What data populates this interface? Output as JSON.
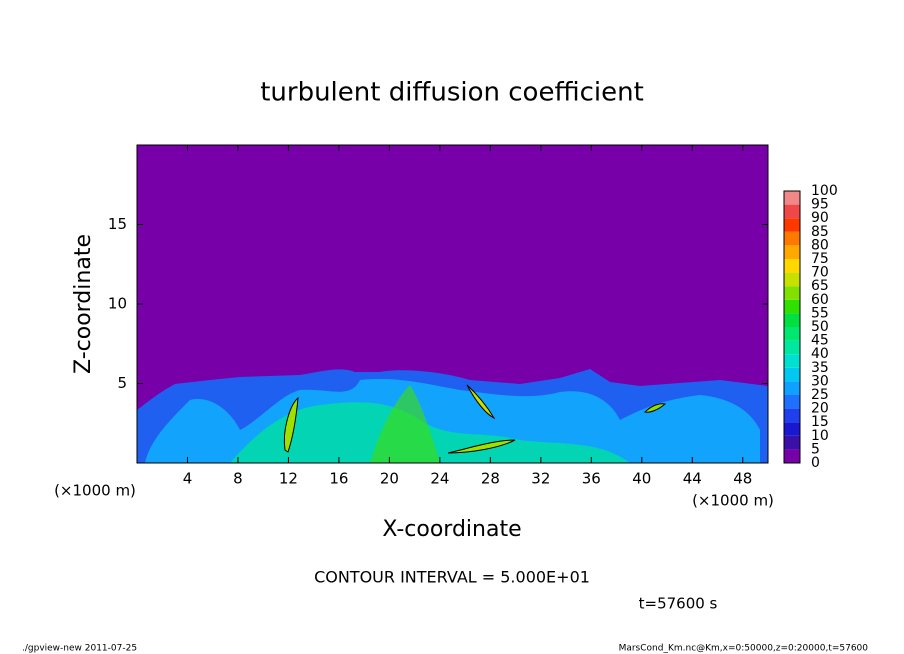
{
  "chart_data": {
    "type": "contour",
    "title": "turbulent diffusion coefficient",
    "x_label": "X-coordinate",
    "y_label": "Z-coordinate",
    "unit_label": "(×1000 m)",
    "xlim": [
      0,
      50
    ],
    "xticks": [
      4,
      8,
      12,
      16,
      20,
      24,
      28,
      32,
      36,
      40,
      44,
      48
    ],
    "ylim": [
      0,
      20
    ],
    "yticks": [
      5,
      10,
      15
    ],
    "colorbar": {
      "levels": [
        0,
        5,
        10,
        15,
        20,
        25,
        30,
        35,
        40,
        45,
        50,
        55,
        60,
        65,
        70,
        75,
        80,
        85,
        90,
        95,
        100
      ],
      "colors": [
        "#7800a8",
        "#3a10a8",
        "#1818d0",
        "#2040f0",
        "#2070ff",
        "#10a0ff",
        "#00c8f0",
        "#00e0d0",
        "#00e8a0",
        "#00e870",
        "#00e040",
        "#30e000",
        "#80e000",
        "#c8e000",
        "#ffd800",
        "#ffa800",
        "#ff7800",
        "#ff3800",
        "#f04848",
        "#f08888"
      ]
    },
    "contour_interval": "CONTOUR INTERVAL = 5.000E+01",
    "time_label": "t=57600 s",
    "footer_left": "./gpview-new  2011-07-25",
    "footer_right": "MarsCond_Km.nc@Km,x=0:50000,z=0:20000,t=57600"
  }
}
